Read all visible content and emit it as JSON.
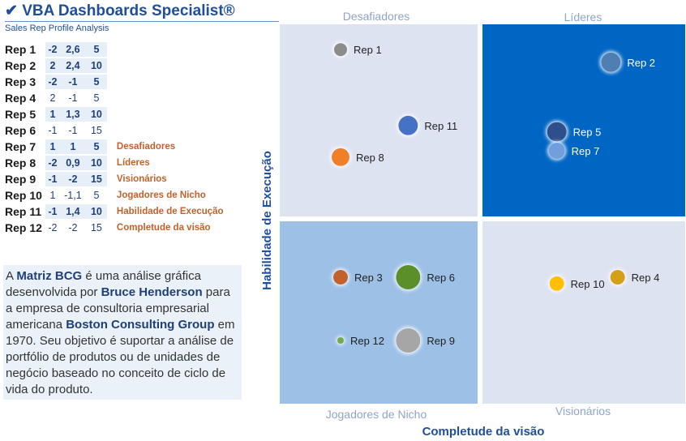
{
  "header": {
    "title": "✔ VBA Dashboards Specialist®",
    "subtitle": "Sales Rep Profile Analysis"
  },
  "table": {
    "rows": [
      {
        "rep": "Rep 1",
        "x": "-2",
        "y": "2,6",
        "size": "5"
      },
      {
        "rep": "Rep 2",
        "x": "2",
        "y": "2,4",
        "size": "10"
      },
      {
        "rep": "Rep 3",
        "x": "-2",
        "y": "-1",
        "size": "5"
      },
      {
        "rep": "Rep 4",
        "x": "2",
        "y": "-1",
        "size": "5"
      },
      {
        "rep": "Rep 5",
        "x": "1",
        "y": "1,3",
        "size": "10"
      },
      {
        "rep": "Rep 6",
        "x": "-1",
        "y": "-1",
        "size": "15"
      },
      {
        "rep": "Rep 7",
        "x": "1",
        "y": "1",
        "size": "5"
      },
      {
        "rep": "Rep 8",
        "x": "-2",
        "y": "0,9",
        "size": "10"
      },
      {
        "rep": "Rep 9",
        "x": "-1",
        "y": "-2",
        "size": "15"
      },
      {
        "rep": "Rep 10",
        "x": "1",
        "y": "-1,1",
        "size": "5"
      },
      {
        "rep": "Rep 11",
        "x": "-1",
        "y": "1,4",
        "size": "10"
      },
      {
        "rep": "Rep 12",
        "x": "-2",
        "y": "-2",
        "size": "15"
      }
    ],
    "legend": [
      "Desafiadores",
      "Líderes",
      "Visionários",
      "Jogadores de Nicho",
      "Habilidade de Execução",
      "Completude da visão"
    ]
  },
  "description": {
    "p1": "A ",
    "b1": "Matriz BCG",
    "p2": " é uma análise gráfica desenvolvida por ",
    "b2": "Bruce Henderson",
    "p3": " para a empresa de consultoria empresarial americana ",
    "b3": "Boston Consulting Group",
    "p4": " em 1970. Seu objetivo é suportar a análise de portfólio de produtos ou de unidades de negócio baseado no conceito de ciclo de vida do produto."
  },
  "chart_data": {
    "type": "scatter",
    "xlabel": "Completude da visão",
    "ylabel": "Habilidade de Execução",
    "quadrants": {
      "top_left": "Desafiadores",
      "top_right": "Líderes",
      "bottom_left": "Jogadores de Nicho",
      "bottom_right": "Visionários"
    },
    "quadrant_colors": {
      "top_left": "#dde3f1",
      "top_right": "#0066c4",
      "bottom_left": "#9dc0e6",
      "bottom_right": "#dde3f1"
    },
    "points": [
      {
        "label": "Rep 1",
        "x": -2.1,
        "y": 2.6,
        "r": 8,
        "color": "#8c8c8c"
      },
      {
        "label": "Rep 2",
        "x": 1.9,
        "y": 2.4,
        "r": 12,
        "color": "#4f7fb2"
      },
      {
        "label": "Rep 3",
        "x": -2.1,
        "y": -1.0,
        "r": 9,
        "color": "#c0622a"
      },
      {
        "label": "Rep 4",
        "x": 2.0,
        "y": -1.0,
        "r": 9,
        "color": "#d4a017"
      },
      {
        "label": "Rep 5",
        "x": 1.1,
        "y": 1.3,
        "r": 12,
        "color": "#2e4f8c"
      },
      {
        "label": "Rep 6",
        "x": -1.1,
        "y": -1.0,
        "r": 15,
        "color": "#5a8f2a"
      },
      {
        "label": "Rep 7",
        "x": 1.1,
        "y": 1.0,
        "r": 10,
        "color": "#6fa0dc"
      },
      {
        "label": "Rep 8",
        "x": -2.1,
        "y": 0.9,
        "r": 11,
        "color": "#f07f27"
      },
      {
        "label": "Rep 9",
        "x": -1.1,
        "y": -2.0,
        "r": 15,
        "color": "#a6a6a6"
      },
      {
        "label": "Rep 10",
        "x": 1.1,
        "y": -1.1,
        "r": 9,
        "color": "#ffc000"
      },
      {
        "label": "Rep 11",
        "x": -1.1,
        "y": 1.4,
        "r": 12,
        "color": "#4472c4"
      },
      {
        "label": "Rep 12",
        "x": -2.1,
        "y": -2.0,
        "r": 4,
        "color": "#70ad47"
      }
    ],
    "xlim": [
      -3,
      3
    ],
    "ylim": [
      -3,
      3
    ],
    "grid": false
  }
}
